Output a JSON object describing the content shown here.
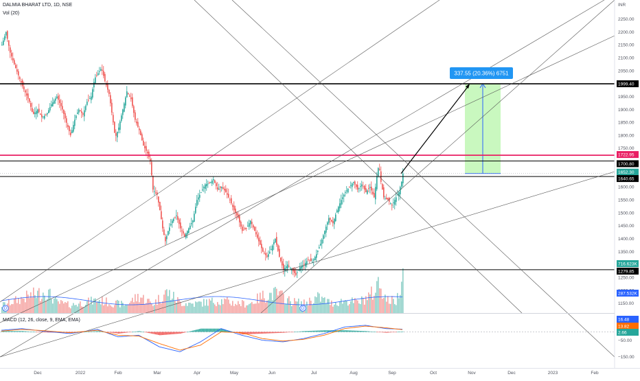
{
  "header": {
    "symbol": "DALMIA BHARAT LTD, 1D, NSE",
    "vol_label": "Vol (20)",
    "macd_label": "MACD (12, 26, close, 9, EMA, EMA)"
  },
  "price_axis": {
    "currency": "INR",
    "ticks": [
      "2250.00",
      "2200.00",
      "2150.00",
      "2100.00",
      "2050.00",
      "2000.00",
      "1950.00",
      "1900.00",
      "1850.00",
      "1800.00",
      "1750.00",
      "1650.00",
      "1600.00",
      "1550.00",
      "1500.00",
      "1450.00",
      "1400.00",
      "1350.00",
      "1300.00",
      "1250.00",
      "1200.00",
      "1150.00"
    ]
  },
  "macd_axis": {
    "ticks": [
      "50.00",
      "−50.00",
      "−150.00"
    ]
  },
  "time_axis": {
    "labels": [
      "Dec",
      "2022",
      "Feb",
      "Mar",
      "Apr",
      "May",
      "Jun",
      "Jul",
      "Aug",
      "Sep",
      "Oct",
      "Nov",
      "Dec",
      "2023",
      "Feb"
    ]
  },
  "tags": {
    "level_1999": "1999.40",
    "level_1722": "1722.95",
    "level_1700": "1700.80",
    "last_price": "1652.30",
    "level_1640": "1640.65",
    "vol_current": "716.623K",
    "level_1279": "1279.85",
    "vol_ma": "287.532K",
    "macd_line": "16.48",
    "signal_line": "13.82",
    "histogram": "2.66"
  },
  "measure_label": "337.55 (20.36%) 6751",
  "markers": [
    "D",
    "D"
  ],
  "colors": {
    "up": "#26a69a",
    "down": "#ef5350",
    "vol_up": "#8fd0c8",
    "vol_down": "#f5a5a3",
    "blue": "#2962ff",
    "magenta": "#e91e63",
    "target_fill": "#b7f5a9",
    "callout": "#2196f3",
    "macd_line": "#2962ff",
    "signal_line": "#ff6d00"
  },
  "chart_data": {
    "type": "candlestick",
    "symbol": "DALMIA BHARAT LTD",
    "interval": "1D",
    "exchange": "NSE",
    "currency": "INR",
    "ylim": [
      1130,
      2280
    ],
    "horizontal_levels": [
      1999.4,
      1722.95,
      1700.8,
      1640.65,
      1279.85
    ],
    "last_price": 1652.3,
    "projection": {
      "from": 1652.3,
      "to": 1999.4,
      "change": 337.55,
      "change_pct": 20.36,
      "bars": 6751
    },
    "close_path": [
      [
        0,
        2150
      ],
      [
        6,
        2200
      ],
      [
        12,
        2120
      ],
      [
        20,
        2060
      ],
      [
        30,
        1990
      ],
      [
        40,
        1930
      ],
      [
        45,
        1880
      ],
      [
        52,
        1900
      ],
      [
        58,
        1870
      ],
      [
        65,
        1880
      ],
      [
        72,
        1920
      ],
      [
        80,
        1950
      ],
      [
        88,
        1900
      ],
      [
        95,
        1840
      ],
      [
        100,
        1800
      ],
      [
        107,
        1870
      ],
      [
        112,
        1900
      ],
      [
        118,
        1880
      ],
      [
        124,
        1930
      ],
      [
        130,
        1950
      ],
      [
        135,
        2020
      ],
      [
        140,
        2040
      ],
      [
        145,
        2060
      ],
      [
        150,
        2010
      ],
      [
        156,
        1960
      ],
      [
        161,
        1870
      ],
      [
        165,
        1790
      ],
      [
        170,
        1830
      ],
      [
        176,
        1900
      ],
      [
        182,
        1970
      ],
      [
        188,
        1940
      ],
      [
        194,
        1860
      ],
      [
        200,
        1820
      ],
      [
        206,
        1760
      ],
      [
        212,
        1730
      ],
      [
        216,
        1700
      ],
      [
        220,
        1590
      ],
      [
        226,
        1570
      ],
      [
        230,
        1510
      ],
      [
        234,
        1440
      ],
      [
        238,
        1390
      ],
      [
        242,
        1430
      ],
      [
        248,
        1470
      ],
      [
        254,
        1490
      ],
      [
        260,
        1440
      ],
      [
        266,
        1410
      ],
      [
        272,
        1440
      ],
      [
        278,
        1470
      ],
      [
        284,
        1550
      ],
      [
        290,
        1580
      ],
      [
        296,
        1610
      ],
      [
        302,
        1615
      ],
      [
        308,
        1630
      ],
      [
        314,
        1590
      ],
      [
        320,
        1600
      ],
      [
        326,
        1580
      ],
      [
        332,
        1550
      ],
      [
        338,
        1510
      ],
      [
        344,
        1480
      ],
      [
        350,
        1430
      ],
      [
        356,
        1440
      ],
      [
        362,
        1470
      ],
      [
        368,
        1430
      ],
      [
        374,
        1390
      ],
      [
        380,
        1350
      ],
      [
        386,
        1330
      ],
      [
        392,
        1360
      ],
      [
        398,
        1400
      ],
      [
        404,
        1330
      ],
      [
        410,
        1280
      ],
      [
        416,
        1300
      ],
      [
        422,
        1280
      ],
      [
        428,
        1260
      ],
      [
        434,
        1290
      ],
      [
        440,
        1300
      ],
      [
        446,
        1320
      ],
      [
        452,
        1310
      ],
      [
        458,
        1340
      ],
      [
        464,
        1380
      ],
      [
        470,
        1430
      ],
      [
        476,
        1480
      ],
      [
        482,
        1460
      ],
      [
        488,
        1510
      ],
      [
        494,
        1550
      ],
      [
        500,
        1580
      ],
      [
        506,
        1600
      ],
      [
        512,
        1620
      ],
      [
        518,
        1590
      ],
      [
        524,
        1610
      ],
      [
        530,
        1580
      ],
      [
        536,
        1600
      ],
      [
        542,
        1560
      ],
      [
        546,
        1640
      ],
      [
        549,
        1690
      ],
      [
        552,
        1620
      ],
      [
        556,
        1560
      ],
      [
        562,
        1550
      ],
      [
        568,
        1530
      ],
      [
        574,
        1560
      ],
      [
        578,
        1580
      ],
      [
        582,
        1620
      ],
      [
        584,
        1652
      ]
    ],
    "volume_path_k": [
      [
        0,
        120
      ],
      [
        20,
        190
      ],
      [
        40,
        260
      ],
      [
        65,
        330
      ],
      [
        80,
        160
      ],
      [
        100,
        120
      ],
      [
        140,
        200
      ],
      [
        160,
        150
      ],
      [
        180,
        130
      ],
      [
        200,
        260
      ],
      [
        220,
        140
      ],
      [
        240,
        320
      ],
      [
        260,
        160
      ],
      [
        280,
        140
      ],
      [
        300,
        170
      ],
      [
        320,
        190
      ],
      [
        340,
        150
      ],
      [
        360,
        140
      ],
      [
        380,
        260
      ],
      [
        400,
        300
      ],
      [
        420,
        180
      ],
      [
        440,
        150
      ],
      [
        460,
        240
      ],
      [
        480,
        150
      ],
      [
        500,
        190
      ],
      [
        520,
        160
      ],
      [
        545,
        340
      ],
      [
        548,
        520
      ],
      [
        560,
        200
      ],
      [
        575,
        180
      ],
      [
        584,
        716
      ]
    ],
    "volume_ma_k": 287.532,
    "macd": {
      "params": "12, 26, close, 9, EMA, EMA",
      "macd_line": [
        [
          0,
          10
        ],
        [
          30,
          20
        ],
        [
          60,
          5
        ],
        [
          100,
          -10
        ],
        [
          140,
          15
        ],
        [
          170,
          -30
        ],
        [
          200,
          -20
        ],
        [
          230,
          -90
        ],
        [
          260,
          -120
        ],
        [
          290,
          -60
        ],
        [
          320,
          20
        ],
        [
          350,
          -20
        ],
        [
          380,
          -50
        ],
        [
          410,
          -60
        ],
        [
          440,
          -40
        ],
        [
          470,
          -10
        ],
        [
          500,
          30
        ],
        [
          530,
          40
        ],
        [
          560,
          20
        ],
        [
          584,
          16.48
        ]
      ],
      "signal_line": [
        [
          0,
          5
        ],
        [
          30,
          15
        ],
        [
          60,
          8
        ],
        [
          100,
          -5
        ],
        [
          140,
          10
        ],
        [
          170,
          -20
        ],
        [
          200,
          -25
        ],
        [
          230,
          -70
        ],
        [
          260,
          -110
        ],
        [
          290,
          -80
        ],
        [
          320,
          0
        ],
        [
          350,
          -5
        ],
        [
          380,
          -40
        ],
        [
          410,
          -55
        ],
        [
          440,
          -45
        ],
        [
          470,
          -20
        ],
        [
          500,
          20
        ],
        [
          530,
          35
        ],
        [
          560,
          25
        ],
        [
          584,
          13.82
        ]
      ],
      "histogram_last": 2.66
    }
  }
}
